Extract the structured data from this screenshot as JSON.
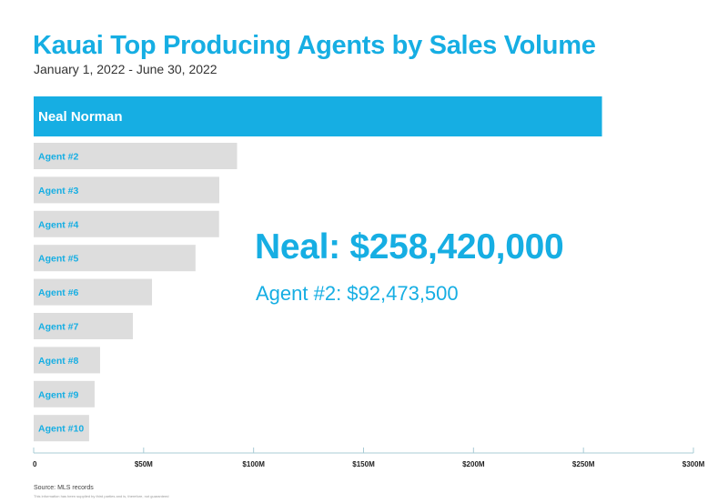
{
  "colors": {
    "accent": "#16aee3",
    "bar_gray": "#dddddd",
    "axis": "#a9ccd6",
    "axis_text": "#222222",
    "label_white": "#ffffff"
  },
  "callout": {
    "main": "Neal: $258,420,000",
    "sub": "Agent #2: $92,473,500"
  },
  "footer": {
    "source": "Source: MLS records",
    "disclaimer": "This information has been supplied by third parties and is, therefore, not guaranteed"
  },
  "chart_data": {
    "type": "bar",
    "orientation": "horizontal",
    "title": "Kauai Top Producing Agents by Sales Volume",
    "subtitle": "January 1, 2022 - June 30, 2022",
    "xlabel": "",
    "ylabel": "",
    "xlim": [
      0,
      300000000
    ],
    "grid": false,
    "legend": "none",
    "units": "USD",
    "categories": [
      "Neal Norman",
      "Agent #2",
      "Agent #3",
      "Agent #4",
      "Agent #5",
      "Agent #6",
      "Agent #7",
      "Agent #8",
      "Agent #9",
      "Agent #10"
    ],
    "values": [
      258420000,
      92473500,
      84400000,
      84300000,
      73600000,
      53800000,
      45100000,
      30200000,
      27700000,
      25200000
    ],
    "highlight": "Neal Norman",
    "ticks": [
      {
        "value": 0,
        "label": "0"
      },
      {
        "value": 50000000,
        "label": "$50M"
      },
      {
        "value": 100000000,
        "label": "$100M"
      },
      {
        "value": 150000000,
        "label": "$150M"
      },
      {
        "value": 200000000,
        "label": "$200M"
      },
      {
        "value": 250000000,
        "label": "$250M"
      },
      {
        "value": 300000000,
        "label": "$300M"
      }
    ]
  }
}
